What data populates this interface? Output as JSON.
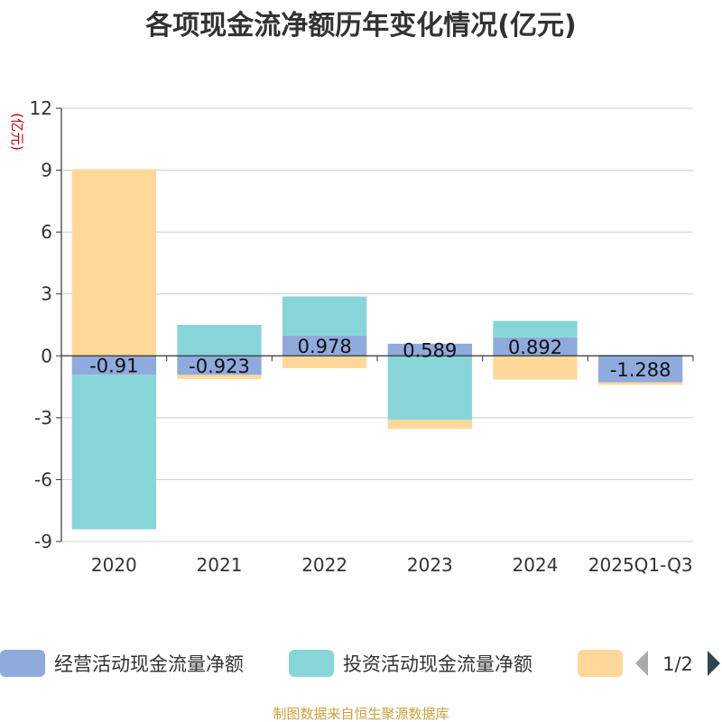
{
  "chart_data": {
    "type": "bar",
    "stacked": true,
    "title": "各项现金流净额历年变化情况(亿元)",
    "ylabel": "(亿元)",
    "xlabel": "",
    "ylim": [
      -9,
      12
    ],
    "yticks": [
      12,
      9,
      6,
      3,
      0,
      -3,
      -6,
      -9
    ],
    "categories": [
      "2020",
      "2021",
      "2022",
      "2023",
      "2024",
      "2025Q1-Q3"
    ],
    "series": [
      {
        "name": "经营活动现金流量净额",
        "color": "#8FAADC",
        "values": [
          -0.91,
          -0.923,
          0.978,
          0.589,
          0.892,
          -1.288
        ],
        "labels": [
          "-0.91",
          "-0.923",
          "0.978",
          "0.589",
          "0.892",
          "-1.288"
        ]
      },
      {
        "name": "投资活动现金流量净额",
        "color": "#88D5D9",
        "values": [
          -7.5,
          1.5,
          1.9,
          -3.1,
          0.8,
          0.05
        ]
      },
      {
        "name": "",
        "color": "#FFD899",
        "values": [
          9.05,
          -0.2,
          -0.6,
          -0.45,
          -1.15,
          -0.12
        ]
      }
    ],
    "legend": {
      "position": "bottom",
      "page_text": "1/2"
    },
    "source": "制图数据来自恒生聚源数据库"
  }
}
